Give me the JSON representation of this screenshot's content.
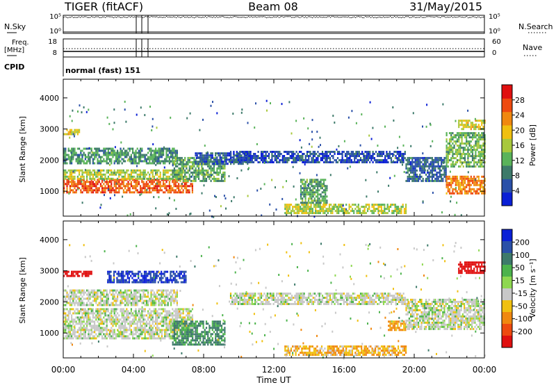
{
  "header": {
    "station": "TIGER (fitACF)",
    "beam": "Beam 08",
    "date": "31/May/2015"
  },
  "nsky_panel": {
    "left_label": "N.Sky",
    "right_label": "N.Search",
    "left_ticks": [
      "10^5",
      "10^0"
    ],
    "right_ticks": [
      "10^5",
      "10^0"
    ]
  },
  "freq_panel": {
    "left_label_line1": "Freq.",
    "left_label_line2": "[MHz]",
    "right_label": "Nave",
    "left_ticks": [
      "18",
      "8"
    ],
    "right_ticks": [
      "60",
      "0"
    ]
  },
  "cpid": {
    "label": "CPID",
    "value": "normal (fast) 151"
  },
  "chart_data": [
    {
      "type": "heatmap",
      "title": "",
      "xlabel": "Time UT",
      "ylabel": "Slant Range [km]",
      "xticks": [
        "00:00",
        "04:00",
        "08:00",
        "12:00",
        "16:00",
        "20:00",
        "00:00"
      ],
      "xlim_hours": [
        0,
        24
      ],
      "yticks": [
        1000,
        2000,
        3000,
        4000
      ],
      "ylim": [
        200,
        4600
      ],
      "colorbar": {
        "label": "Power [dB]",
        "ticks": [
          4,
          8,
          12,
          16,
          20,
          24,
          28
        ],
        "range": [
          0,
          32
        ],
        "colors": [
          "#0a1fd6",
          "#2a50a8",
          "#3d7a6a",
          "#5ab35a",
          "#a8c83c",
          "#f0c010",
          "#f08810",
          "#ee4a10",
          "#e01010"
        ]
      },
      "echo_regions": [
        {
          "t_start": 0.0,
          "t_end": 7.4,
          "range_low": 950,
          "range_high": 1400,
          "level_db": 26
        },
        {
          "t_start": 0.0,
          "t_end": 6.8,
          "range_low": 1400,
          "range_high": 1700,
          "level_db": 16
        },
        {
          "t_start": 0.0,
          "t_end": 6.5,
          "range_low": 1900,
          "range_high": 2400,
          "level_db": 10
        },
        {
          "t_start": 0.0,
          "t_end": 0.9,
          "range_low": 2800,
          "range_high": 3000,
          "level_db": 18
        },
        {
          "t_start": 6.2,
          "t_end": 9.2,
          "range_low": 1300,
          "range_high": 2100,
          "level_db": 12
        },
        {
          "t_start": 7.5,
          "t_end": 10.5,
          "range_low": 1900,
          "range_high": 2250,
          "level_db": 6
        },
        {
          "t_start": 9.5,
          "t_end": 19.5,
          "range_low": 1900,
          "range_high": 2300,
          "level_db": 5
        },
        {
          "t_start": 12.6,
          "t_end": 19.5,
          "range_low": 300,
          "range_high": 600,
          "level_db": 16
        },
        {
          "t_start": 13.5,
          "t_end": 15.0,
          "range_low": 600,
          "range_high": 1400,
          "level_db": 11
        },
        {
          "t_start": 19.5,
          "t_end": 21.8,
          "range_low": 1300,
          "range_high": 2100,
          "level_db": 7
        },
        {
          "t_start": 21.8,
          "t_end": 24.0,
          "range_low": 950,
          "range_high": 1500,
          "level_db": 24
        },
        {
          "t_start": 21.8,
          "t_end": 24.0,
          "range_low": 1800,
          "range_high": 2900,
          "level_db": 13
        },
        {
          "t_start": 22.5,
          "t_end": 24.0,
          "range_low": 3000,
          "range_high": 3300,
          "level_db": 18
        }
      ]
    },
    {
      "type": "heatmap",
      "title": "",
      "xlabel": "Time UT",
      "ylabel": "Slant Range [km]",
      "xticks": [
        "00:00",
        "04:00",
        "08:00",
        "12:00",
        "16:00",
        "20:00",
        "00:00"
      ],
      "xlim_hours": [
        0,
        24
      ],
      "yticks": [
        1000,
        2000,
        3000,
        4000
      ],
      "ylim": [
        200,
        4600
      ],
      "colorbar": {
        "label": "Velocity [m s^-1]",
        "ticks": [
          "200",
          "100",
          "50",
          "15",
          "-15",
          "-50",
          "-100",
          "-200"
        ],
        "colors": [
          "#0a1fd6",
          "#2a50a8",
          "#3d7a6a",
          "#4cb34c",
          "#8ed850",
          "#c8c8c8",
          "#f0c010",
          "#f08810",
          "#ee4a10",
          "#e01010"
        ]
      },
      "echo_regions": [
        {
          "t_start": 0.0,
          "t_end": 7.4,
          "range_low": 800,
          "range_high": 1800,
          "velocity": 0
        },
        {
          "t_start": 0.0,
          "t_end": 6.5,
          "range_low": 1900,
          "range_high": 2400,
          "velocity": 0
        },
        {
          "t_start": 0.0,
          "t_end": 1.6,
          "range_low": 2850,
          "range_high": 3000,
          "velocity": -200
        },
        {
          "t_start": 2.5,
          "t_end": 7.0,
          "range_low": 2600,
          "range_high": 3000,
          "velocity": 150
        },
        {
          "t_start": 6.2,
          "t_end": 9.2,
          "range_low": 600,
          "range_high": 1400,
          "velocity": 40
        },
        {
          "t_start": 9.5,
          "t_end": 19.5,
          "range_low": 1900,
          "range_high": 2300,
          "velocity": 0
        },
        {
          "t_start": 12.6,
          "t_end": 19.5,
          "range_low": 300,
          "range_high": 600,
          "velocity": -30
        },
        {
          "t_start": 18.5,
          "t_end": 19.5,
          "range_low": 1100,
          "range_high": 1400,
          "velocity": -40
        },
        {
          "t_start": 19.5,
          "t_end": 24.0,
          "range_low": 1100,
          "range_high": 2100,
          "velocity": 0
        },
        {
          "t_start": 22.5,
          "t_end": 24.0,
          "range_low": 2900,
          "range_high": 3300,
          "velocity": -200
        }
      ]
    }
  ]
}
